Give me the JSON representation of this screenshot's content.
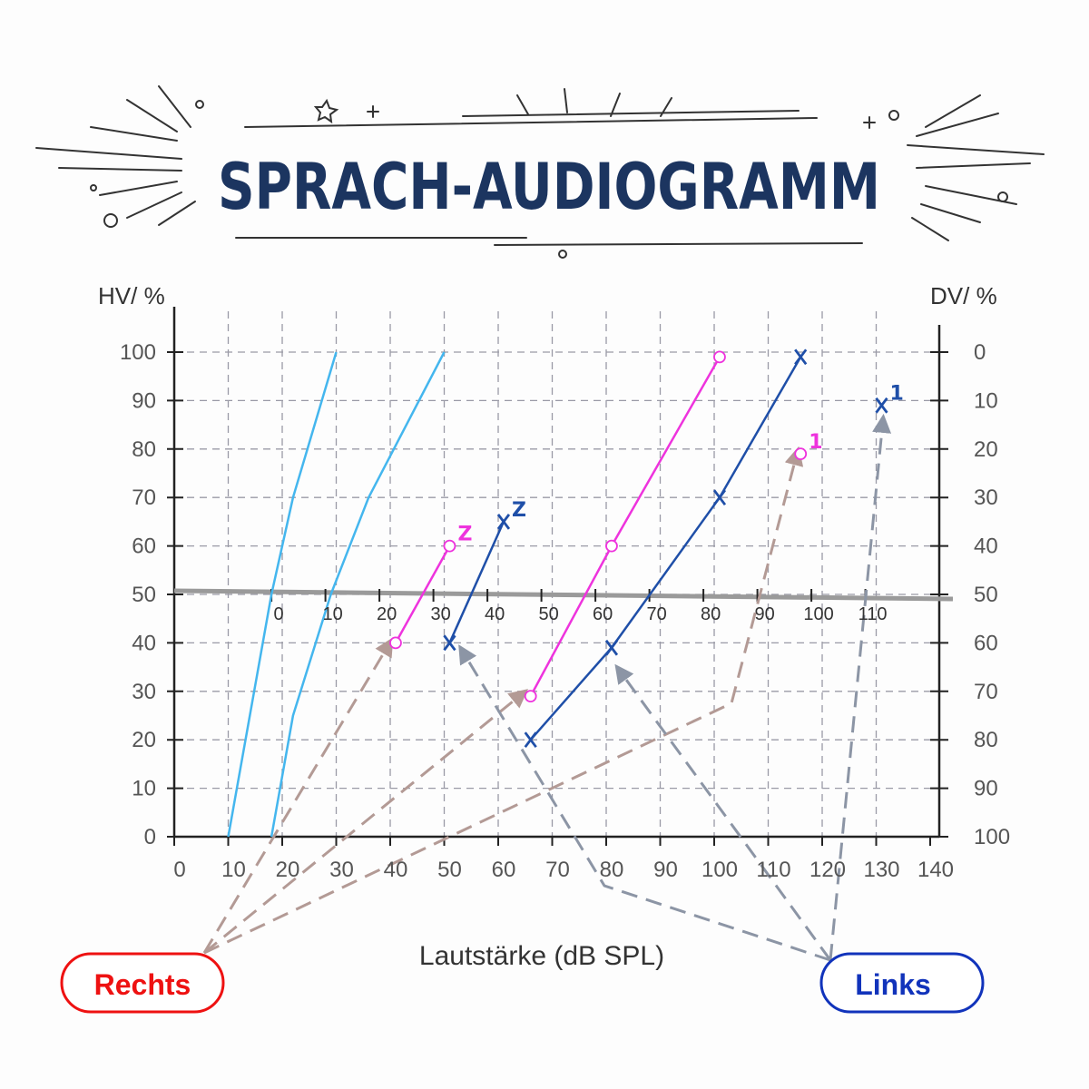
{
  "chart_data": {
    "type": "line",
    "title": "SPRACH-AUDIOGRAMM",
    "xlabel": "Lautstärke (dB SPL)",
    "ylabel_left": "HV/ %",
    "ylabel_right": "DV/ %",
    "xlim": [
      0,
      140
    ],
    "ylim": [
      0,
      100
    ],
    "x_ticks": [
      "0",
      "10",
      "20",
      "30",
      "40",
      "50",
      "60",
      "70",
      "80",
      "90",
      "100",
      "110",
      "120",
      "130",
      "140"
    ],
    "y_ticks_left": [
      "0",
      "10",
      "20",
      "30",
      "40",
      "50",
      "60",
      "70",
      "80",
      "90",
      "100"
    ],
    "y_ticks_right": [
      "100",
      "90",
      "80",
      "70",
      "60",
      "50",
      "40",
      "30",
      "20",
      "10",
      "0"
    ],
    "hearing_loss_ticks": [
      "0",
      "10",
      "20",
      "30",
      "40",
      "50",
      "60",
      "70",
      "80",
      "90",
      "100",
      "110"
    ],
    "reference_line_level": 50,
    "colors": {
      "normal_curve": "#44b6ee",
      "right_ear": "#ee33dd",
      "left_ear": "#1f4fa8",
      "arrow_right": "#b39a95",
      "arrow_left": "#8c95a5",
      "grid": "#9a9aa6",
      "axis": "#222222",
      "title": "#1c3560",
      "badge_rechts": "#ee1111",
      "badge_links": "#1133bb"
    },
    "series": [
      {
        "kind": "normal",
        "points": [
          [
            10,
            0
          ],
          [
            14,
            25
          ],
          [
            18,
            50
          ],
          [
            22,
            70
          ],
          [
            30,
            100
          ]
        ]
      },
      {
        "kind": "normal",
        "points": [
          [
            18,
            0
          ],
          [
            22,
            25
          ],
          [
            29,
            50
          ],
          [
            36,
            70
          ],
          [
            50,
            100
          ]
        ]
      },
      {
        "kind": "right",
        "marker": "circle",
        "label": "Z",
        "points": [
          [
            41,
            40
          ],
          [
            51,
            60
          ]
        ]
      },
      {
        "kind": "left",
        "marker": "x",
        "label": "Z",
        "points": [
          [
            51,
            40
          ],
          [
            61,
            65
          ]
        ]
      },
      {
        "kind": "right",
        "marker": "circle",
        "points": [
          [
            66,
            29
          ],
          [
            81,
            60
          ],
          [
            101,
            99
          ]
        ]
      },
      {
        "kind": "left",
        "marker": "x",
        "points": [
          [
            66,
            20
          ],
          [
            81,
            39
          ],
          [
            101,
            70
          ],
          [
            116,
            99
          ]
        ]
      },
      {
        "kind": "right",
        "marker": "circle",
        "label": "1",
        "points": [
          [
            116,
            79
          ]
        ]
      },
      {
        "kind": "left",
        "marker": "x",
        "label": "1",
        "points": [
          [
            131,
            89
          ]
        ]
      }
    ]
  },
  "badges": {
    "right": "Rechts",
    "left": "Links"
  }
}
